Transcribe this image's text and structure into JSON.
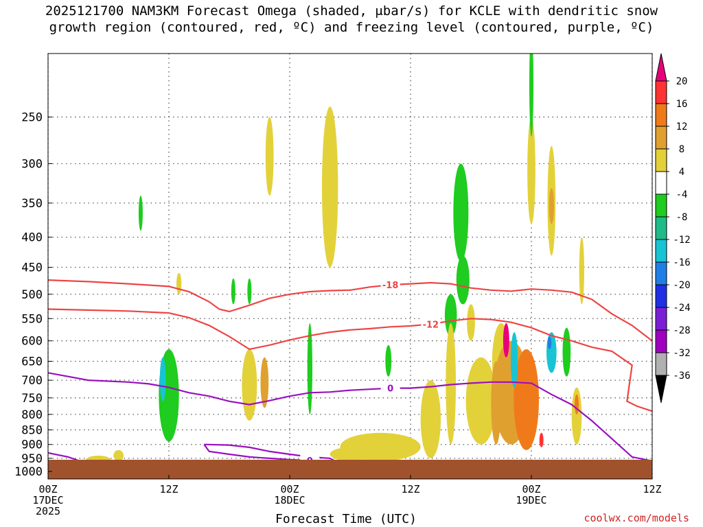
{
  "title": {
    "line1": "2025121700 NAM3KM Forecast Omega (shaded, μbar/s) for KCLE with dendritic snow",
    "line2": "growth region (contoured, red, ºC) and freezing level (contoured, purple, ºC)"
  },
  "credit": "coolwx.com/models",
  "chart_data": {
    "type": "heatmap",
    "title": "2025121700 NAM3KM Forecast Omega (shaded, μbar/s) for KCLE with dendritic snow growth region (contoured, red, ºC) and freezing level (contoured, purple, ºC)",
    "xlabel": "Forecast Time (UTC)",
    "ylabel": "",
    "x_hours_range": [
      0,
      60
    ],
    "y_pressure_hpa_range": [
      1030,
      195
    ],
    "y_scale": "log",
    "grid": true,
    "x_ticks": [
      {
        "hour": 0,
        "lines": [
          "00Z",
          "17DEC",
          "2025"
        ]
      },
      {
        "hour": 12,
        "lines": [
          "12Z"
        ]
      },
      {
        "hour": 24,
        "lines": [
          "00Z",
          "18DEC"
        ]
      },
      {
        "hour": 36,
        "lines": [
          "12Z"
        ]
      },
      {
        "hour": 48,
        "lines": [
          "00Z",
          "19DEC"
        ]
      },
      {
        "hour": 60,
        "lines": [
          "12Z"
        ]
      }
    ],
    "y_ticks": [
      250,
      300,
      350,
      400,
      450,
      500,
      550,
      600,
      650,
      700,
      750,
      800,
      850,
      900,
      950,
      1000
    ],
    "colorbar": {
      "labels": [
        "20",
        "16",
        "12",
        "8",
        "4",
        "-4",
        "-8",
        "-12",
        "-16",
        "-20",
        "-24",
        "-28",
        "-32",
        "-36"
      ],
      "colors": [
        "#e8007a",
        "#ff3333",
        "#f07a1a",
        "#e0a030",
        "#e3d13a",
        "#ffffff",
        "#1fcc1f",
        "#1fbb88",
        "#18c4d4",
        "#1f7fe6",
        "#1f2fe6",
        "#7a1fd6",
        "#a000c0",
        "#b0b0b0",
        "#000000"
      ]
    },
    "contours": {
      "dgz": [
        {
          "label": "-18",
          "points": [
            [
              0,
              473
            ],
            [
              4,
              476
            ],
            [
              8,
              480
            ],
            [
              12,
              485
            ],
            [
              14,
              495
            ],
            [
              16,
              515
            ],
            [
              17,
              530
            ],
            [
              18,
              535
            ],
            [
              20,
              522
            ],
            [
              22,
              508
            ],
            [
              24,
              500
            ],
            [
              26,
              495
            ],
            [
              28,
              493
            ],
            [
              30,
              492
            ],
            [
              32,
              486
            ],
            [
              34,
              482
            ],
            [
              36,
              480
            ],
            [
              38,
              478
            ],
            [
              40,
              480
            ],
            [
              42,
              488
            ],
            [
              44,
              492
            ],
            [
              46,
              494
            ],
            [
              48,
              490
            ],
            [
              50,
              492
            ],
            [
              52,
              496
            ],
            [
              54,
              510
            ],
            [
              56,
              540
            ],
            [
              58,
              565
            ],
            [
              60,
              600
            ]
          ]
        },
        {
          "label": "-12",
          "points": [
            [
              0,
              530
            ],
            [
              4,
              532
            ],
            [
              8,
              534
            ],
            [
              12,
              538
            ],
            [
              14,
              548
            ],
            [
              16,
              565
            ],
            [
              18,
              590
            ],
            [
              20,
              620
            ],
            [
              22,
              610
            ],
            [
              24,
              598
            ],
            [
              26,
              588
            ],
            [
              28,
              580
            ],
            [
              30,
              575
            ],
            [
              32,
              572
            ],
            [
              34,
              568
            ],
            [
              36,
              566
            ],
            [
              38,
              562
            ],
            [
              40,
              555
            ],
            [
              42,
              550
            ],
            [
              44,
              552
            ],
            [
              46,
              558
            ],
            [
              48,
              570
            ],
            [
              50,
              588
            ],
            [
              52,
              600
            ],
            [
              54,
              615
            ],
            [
              56,
              625
            ],
            [
              58,
              660
            ],
            [
              57.5,
              760
            ],
            [
              58.5,
              775
            ],
            [
              60,
              790
            ]
          ]
        }
      ],
      "freezing": [
        {
          "label": "0",
          "points": [
            [
              0,
              680
            ],
            [
              4,
              700
            ],
            [
              8,
              705
            ],
            [
              10,
              710
            ],
            [
              12,
              720
            ],
            [
              14,
              735
            ],
            [
              16,
              745
            ],
            [
              18,
              760
            ],
            [
              20,
              770
            ],
            [
              22,
              758
            ],
            [
              24,
              745
            ],
            [
              26,
              735
            ],
            [
              28,
              733
            ],
            [
              30,
              728
            ],
            [
              32,
              725
            ],
            [
              34,
              722
            ],
            [
              36,
              722
            ],
            [
              38,
              718
            ],
            [
              40,
              712
            ],
            [
              42,
              708
            ],
            [
              44,
              705
            ],
            [
              46,
              705
            ],
            [
              48,
              708
            ],
            [
              50,
              740
            ],
            [
              52,
              770
            ],
            [
              54,
              820
            ],
            [
              56,
              880
            ],
            [
              58,
              945
            ],
            [
              60,
              960
            ]
          ]
        },
        {
          "label": "0",
          "points": [
            [
              15.5,
              900
            ],
            [
              18,
              902
            ],
            [
              20,
              910
            ],
            [
              22,
              925
            ],
            [
              24,
              935
            ],
            [
              26,
              945
            ],
            [
              28,
              950
            ],
            [
              28.5,
              960
            ],
            [
              26,
              958
            ],
            [
              24,
              955
            ],
            [
              22,
              950
            ],
            [
              20,
              945
            ],
            [
              18,
              935
            ],
            [
              16,
              925
            ],
            [
              15.5,
              900
            ]
          ]
        },
        {
          "label": "",
          "points": [
            [
              0,
              930
            ],
            [
              2,
              945
            ],
            [
              3,
              958
            ],
            [
              1,
              960
            ],
            [
              0,
              958
            ]
          ]
        }
      ]
    }
  }
}
